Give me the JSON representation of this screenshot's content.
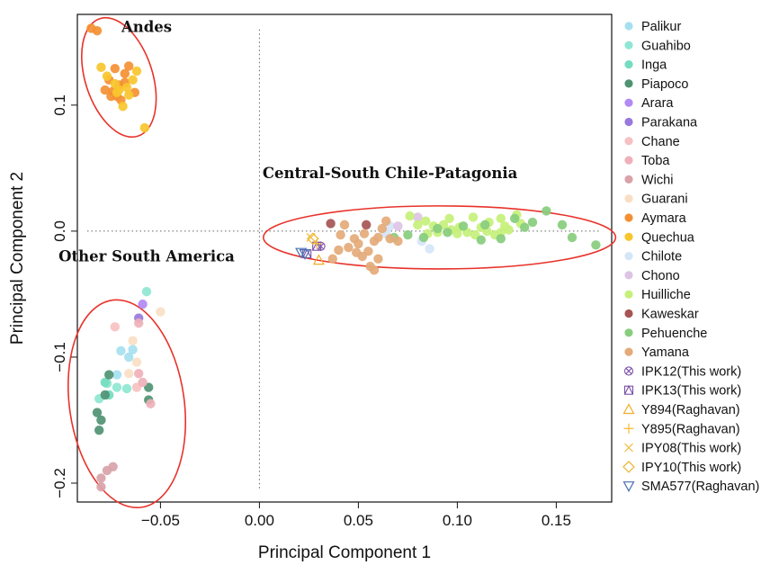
{
  "chart_data": {
    "type": "scatter",
    "xlabel": "Principal Component 1",
    "ylabel": "Principal Component 2",
    "xlim": [
      -0.092,
      0.178
    ],
    "ylim": [
      -0.215,
      0.172
    ],
    "xticks": [
      -0.05,
      0.0,
      0.05,
      0.1,
      0.15
    ],
    "xtick_labels": [
      "−0.05",
      "0.00",
      "0.05",
      "0.10",
      "0.15"
    ],
    "yticks": [
      -0.2,
      -0.1,
      0.0,
      0.1
    ],
    "ytick_labels": [
      "−0.2",
      "−0.1",
      "0.0",
      "0.1"
    ],
    "reference_lines": {
      "x": 0,
      "y": 0,
      "style": "dotted"
    },
    "legend_position": "right, outside plot",
    "annotations": [
      {
        "text": "Andes",
        "x": -0.057,
        "y": 0.158
      },
      {
        "text": "Central-South Chile-Patagonia",
        "x": 0.066,
        "y": 0.042
      },
      {
        "text": "Other South America",
        "x": -0.057,
        "y": -0.024
      }
    ],
    "clusters": [
      {
        "label": "Andes",
        "cx": -0.071,
        "cy": 0.122,
        "rx": 0.017,
        "ry": 0.049,
        "angle": 18,
        "color": "#e8322a"
      },
      {
        "label": "Central-South Chile-Patagonia",
        "cx": 0.091,
        "cy": -0.005,
        "rx": 0.089,
        "ry": 0.025,
        "angle": 0,
        "color": "#e8322a"
      },
      {
        "label": "Other South America",
        "cx": -0.067,
        "cy": -0.137,
        "rx": 0.029,
        "ry": 0.083,
        "angle": 8,
        "color": "#e8322a"
      }
    ],
    "series": [
      {
        "name": "Palikur",
        "color": "#a6e0ef",
        "marker": "circle",
        "points": [
          [
            -0.07,
            -0.095
          ],
          [
            -0.066,
            -0.1
          ],
          [
            -0.064,
            -0.094
          ],
          [
            -0.072,
            -0.114
          ]
        ]
      },
      {
        "name": "Guahibo",
        "color": "#8ee7d2",
        "marker": "circle",
        "points": [
          [
            -0.057,
            -0.048
          ],
          [
            -0.072,
            -0.124
          ],
          [
            -0.077,
            -0.121
          ],
          [
            -0.081,
            -0.133
          ],
          [
            -0.067,
            -0.125
          ]
        ]
      },
      {
        "name": "Inga",
        "color": "#74dcc0",
        "marker": "circle",
        "points": [
          [
            -0.076,
            -0.13
          ],
          [
            -0.078,
            -0.12
          ]
        ]
      },
      {
        "name": "Piapoco",
        "color": "#4f9373",
        "marker": "circle",
        "points": [
          [
            -0.076,
            -0.114
          ],
          [
            -0.082,
            -0.144
          ],
          [
            -0.08,
            -0.15
          ],
          [
            -0.081,
            -0.158
          ],
          [
            -0.078,
            -0.13
          ],
          [
            -0.056,
            -0.124
          ],
          [
            -0.056,
            -0.134
          ]
        ]
      },
      {
        "name": "Arara",
        "color": "#b289f5",
        "marker": "circle",
        "points": [
          [
            -0.059,
            -0.058
          ]
        ]
      },
      {
        "name": "Parakana",
        "color": "#9879dc",
        "marker": "circle",
        "points": [
          [
            -0.061,
            -0.069
          ]
        ]
      },
      {
        "name": "Chane",
        "color": "#f7c1c1",
        "marker": "circle",
        "points": [
          [
            -0.073,
            -0.076
          ],
          [
            -0.062,
            -0.124
          ]
        ]
      },
      {
        "name": "Toba",
        "color": "#efb1b9",
        "marker": "circle",
        "points": [
          [
            -0.061,
            -0.073
          ],
          [
            -0.059,
            -0.12
          ],
          [
            -0.061,
            -0.113
          ],
          [
            -0.055,
            -0.137
          ]
        ]
      },
      {
        "name": "Wichi",
        "color": "#d8a3a9",
        "marker": "circle",
        "points": [
          [
            -0.077,
            -0.19
          ],
          [
            -0.074,
            -0.187
          ],
          [
            -0.08,
            -0.196
          ],
          [
            -0.08,
            -0.203
          ]
        ]
      },
      {
        "name": "Guarani",
        "color": "#f8dfc4",
        "marker": "circle",
        "points": [
          [
            -0.05,
            -0.064
          ],
          [
            -0.064,
            -0.087
          ],
          [
            -0.062,
            -0.104
          ],
          [
            -0.066,
            -0.113
          ]
        ]
      },
      {
        "name": "Aymara",
        "color": "#f49032",
        "marker": "circle",
        "points": [
          [
            -0.085,
            0.161
          ],
          [
            -0.082,
            0.159
          ],
          [
            -0.076,
            0.12
          ],
          [
            -0.074,
            0.111
          ],
          [
            -0.071,
            0.116
          ],
          [
            -0.068,
            0.125
          ],
          [
            -0.073,
            0.129
          ],
          [
            -0.066,
            0.131
          ],
          [
            -0.07,
            0.104
          ],
          [
            -0.075,
            0.107
          ],
          [
            -0.063,
            0.11
          ],
          [
            -0.068,
            0.118
          ],
          [
            -0.072,
            0.107
          ],
          [
            -0.078,
            0.112
          ]
        ]
      },
      {
        "name": "Quechua",
        "color": "#f8c52c",
        "marker": "circle",
        "points": [
          [
            -0.08,
            0.13
          ],
          [
            -0.077,
            0.123
          ],
          [
            -0.071,
            0.112
          ],
          [
            -0.066,
            0.108
          ],
          [
            -0.069,
            0.099
          ],
          [
            -0.064,
            0.12
          ],
          [
            -0.062,
            0.127
          ],
          [
            -0.067,
            0.114
          ],
          [
            -0.072,
            0.11
          ],
          [
            -0.058,
            0.082
          ],
          [
            -0.073,
            0.117
          ]
        ]
      },
      {
        "name": "Chilote",
        "color": "#d5e5f8",
        "marker": "circle",
        "points": [
          [
            0.064,
            -0.002
          ],
          [
            0.082,
            -0.008
          ],
          [
            0.086,
            -0.014
          ],
          [
            0.066,
            0.004
          ]
        ]
      },
      {
        "name": "Chono",
        "color": "#ddc3e4",
        "marker": "circle",
        "points": [
          [
            0.08,
            0.011
          ],
          [
            0.07,
            0.004
          ]
        ]
      },
      {
        "name": "Huilliche",
        "color": "#c5f07a",
        "marker": "circle",
        "points": [
          [
            0.076,
            0.012
          ],
          [
            0.08,
            0.005
          ],
          [
            0.084,
            0.008
          ],
          [
            0.09,
            -0.001
          ],
          [
            0.093,
            0.005
          ],
          [
            0.097,
            0.001
          ],
          [
            0.101,
            0.003
          ],
          [
            0.105,
            -0.001
          ],
          [
            0.108,
            0.011
          ],
          [
            0.112,
            0.003
          ],
          [
            0.116,
            0.007
          ],
          [
            0.119,
            -0.003
          ],
          [
            0.122,
            0.01
          ],
          [
            0.126,
            0.001
          ],
          [
            0.13,
            0.013
          ],
          [
            0.124,
            0.004
          ],
          [
            0.109,
            -0.003
          ],
          [
            0.1,
            -0.002
          ],
          [
            0.096,
            0.01
          ],
          [
            0.088,
            0.004
          ],
          [
            0.085,
            -0.002
          ],
          [
            0.115,
            0.0
          ],
          [
            0.122,
            -0.001
          ],
          [
            0.132,
            0.006
          ]
        ]
      },
      {
        "name": "Kaweskar",
        "color": "#a65454",
        "marker": "circle",
        "points": [
          [
            0.036,
            0.006
          ],
          [
            0.054,
            0.005
          ]
        ]
      },
      {
        "name": "Pehuenche",
        "color": "#88cd7d",
        "marker": "circle",
        "points": [
          [
            0.068,
            -0.005
          ],
          [
            0.075,
            -0.003
          ],
          [
            0.083,
            -0.005
          ],
          [
            0.095,
            -0.001
          ],
          [
            0.103,
            0.004
          ],
          [
            0.112,
            -0.007
          ],
          [
            0.122,
            -0.006
          ],
          [
            0.129,
            0.01
          ],
          [
            0.134,
            0.003
          ],
          [
            0.138,
            0.007
          ],
          [
            0.145,
            0.016
          ],
          [
            0.153,
            0.005
          ],
          [
            0.158,
            -0.005
          ],
          [
            0.17,
            -0.011
          ],
          [
            0.114,
            0.005
          ],
          [
            0.09,
            0.002
          ]
        ]
      },
      {
        "name": "Yamana",
        "color": "#e4aa78",
        "marker": "circle",
        "points": [
          [
            0.043,
            0.005
          ],
          [
            0.048,
            -0.006
          ],
          [
            0.05,
            -0.01
          ],
          [
            0.045,
            -0.013
          ],
          [
            0.04,
            -0.015
          ],
          [
            0.037,
            -0.022
          ],
          [
            0.041,
            -0.003
          ],
          [
            0.053,
            -0.002
          ],
          [
            0.055,
            -0.016
          ],
          [
            0.058,
            -0.008
          ],
          [
            0.06,
            -0.005
          ],
          [
            0.056,
            -0.028
          ],
          [
            0.058,
            -0.031
          ],
          [
            0.06,
            -0.022
          ],
          [
            0.062,
            0.002
          ],
          [
            0.064,
            0.008
          ],
          [
            0.066,
            -0.006
          ],
          [
            0.07,
            -0.008
          ],
          [
            0.052,
            -0.02
          ],
          [
            0.049,
            -0.017
          ]
        ]
      },
      {
        "name": "IPK12(This work)",
        "color": "#7a4fa8",
        "marker": "circle-x",
        "points": [
          [
            0.031,
            -0.012
          ]
        ]
      },
      {
        "name": "IPK13(This work)",
        "color": "#7a4fa8",
        "marker": "square-triangle",
        "points": [
          [
            0.024,
            -0.018
          ],
          [
            0.029,
            -0.012
          ]
        ]
      },
      {
        "name": "Y894(Raghavan)",
        "color": "#f0ad2b",
        "marker": "triangle-up",
        "points": [
          [
            0.03,
            -0.023
          ]
        ]
      },
      {
        "name": "Y895(Raghavan)",
        "color": "#f6c040",
        "marker": "plus",
        "points": [
          [
            0.029,
            -0.01
          ]
        ]
      },
      {
        "name": "IPY08(This work)",
        "color": "#f2c048",
        "marker": "x",
        "points": [
          [
            0.026,
            -0.005
          ]
        ]
      },
      {
        "name": "IPY10(This work)",
        "color": "#f0b430",
        "marker": "diamond",
        "points": [
          [
            0.027,
            -0.006
          ]
        ]
      },
      {
        "name": "SMA577(Raghavan)",
        "color": "#4a6fb0",
        "marker": "triangle-down",
        "points": [
          [
            0.021,
            -0.017
          ],
          [
            0.023,
            -0.018
          ]
        ]
      }
    ]
  }
}
